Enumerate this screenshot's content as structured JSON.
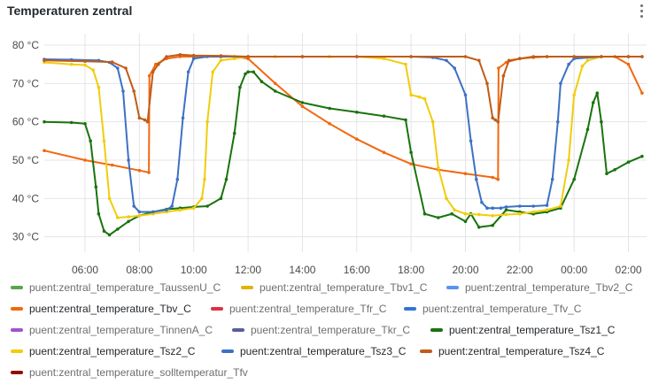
{
  "panel": {
    "title": "Temperaturen zentral",
    "menu_icon": "kebab-menu-icon"
  },
  "chart_data": {
    "type": "line",
    "title": "Temperaturen zentral",
    "xlabel": "",
    "ylabel": "",
    "x_unit": "hours (local time, day boundary after 23:59)",
    "xlim": [
      "04:30",
      "26:40"
    ],
    "ylim": [
      26,
      83
    ],
    "y_ticks": [
      30,
      40,
      50,
      60,
      70,
      80
    ],
    "y_tick_labels": [
      "30 °C",
      "40 °C",
      "50 °C",
      "60 °C",
      "70 °C",
      "80 °C"
    ],
    "x_ticks": [
      6,
      8,
      10,
      12,
      14,
      16,
      18,
      20,
      22,
      24,
      26
    ],
    "x_tick_labels": [
      "06:00",
      "08:00",
      "10:00",
      "12:00",
      "14:00",
      "16:00",
      "18:00",
      "20:00",
      "22:00",
      "00:00",
      "02:00"
    ],
    "grid": true,
    "legend_placement": "bottom",
    "series": [
      {
        "name": "puent:zentral_temperature_TaussenU_C",
        "color": "#56a64b",
        "active": false,
        "x": [],
        "y": []
      },
      {
        "name": "puent:zentral_temperature_Tbv1_C",
        "color": "#e0b400",
        "active": false,
        "x": [],
        "y": []
      },
      {
        "name": "puent:zentral_temperature_Tbv2_C",
        "color": "#5794f2",
        "active": false,
        "x": [],
        "y": []
      },
      {
        "name": "puent:zentral_temperature_Tbv_C",
        "color": "#f2680f",
        "active": true,
        "x": [
          4.5,
          6,
          7,
          8,
          8.35,
          8.37,
          8.6,
          9,
          9.5,
          10,
          11,
          11.5,
          12,
          13,
          14,
          15,
          16,
          17,
          18,
          19,
          20,
          21,
          21.2,
          21.22,
          21.5,
          22,
          22.5,
          23,
          24,
          25,
          25.5,
          26,
          26.5
        ],
        "y": [
          52.5,
          50,
          48.7,
          47.3,
          46.8,
          72,
          75,
          76.5,
          77,
          77,
          77,
          77,
          76.5,
          70,
          64,
          59.5,
          55.5,
          52,
          49,
          47.5,
          46.5,
          45.5,
          45,
          74,
          75.5,
          76.5,
          76.8,
          77,
          77,
          77,
          77,
          75,
          67.5
        ]
      },
      {
        "name": "puent:zentral_temperature_Tfr_C",
        "color": "#e02f44",
        "active": false,
        "x": [],
        "y": []
      },
      {
        "name": "puent:zentral_temperature_Tfv_C",
        "color": "#3274d9",
        "active": false,
        "x": [],
        "y": []
      },
      {
        "name": "puent:zentral_temperature_TinnenA_C",
        "color": "#a352cc",
        "active": false,
        "x": [],
        "y": []
      },
      {
        "name": "puent:zentral_temperature_Tkr_C",
        "color": "#5a5f9a",
        "active": false,
        "x": [],
        "y": []
      },
      {
        "name": "puent:zentral_temperature_Tsz1_C",
        "color": "#19730e",
        "active": true,
        "x": [
          4.5,
          5.5,
          6,
          6.2,
          6.4,
          6.5,
          6.7,
          6.9,
          7.2,
          7.6,
          8,
          8.5,
          9,
          9.5,
          10,
          10.5,
          11,
          11.2,
          11.5,
          11.7,
          11.9,
          12,
          12.2,
          12.5,
          13,
          14,
          15,
          16,
          17,
          17.8,
          18,
          18.5,
          19,
          19.5,
          20,
          20.2,
          20.5,
          21,
          21.5,
          22,
          22.5,
          23,
          23.5,
          24,
          24.5,
          24.7,
          24.85,
          25,
          25.2,
          25.5,
          26,
          26.5
        ],
        "y": [
          60,
          59.8,
          59.5,
          55,
          43,
          36,
          31.5,
          30.5,
          32,
          34,
          35.5,
          36.5,
          37.2,
          37.5,
          37.8,
          38,
          40,
          45,
          57,
          69,
          72.5,
          73,
          73,
          70.5,
          68,
          65,
          63.5,
          62.5,
          61.5,
          60.5,
          52,
          36,
          35,
          36,
          34,
          36,
          32.5,
          33,
          37,
          36.5,
          36,
          36.5,
          37.5,
          45,
          58,
          65,
          67.5,
          60,
          46.5,
          47.5,
          49.5,
          51
        ]
      },
      {
        "name": "puent:zentral_temperature_Tsz2_C",
        "color": "#f2cc0c",
        "active": true,
        "x": [
          4.5,
          5.5,
          6,
          6.3,
          6.5,
          6.7,
          6.9,
          7.2,
          7.6,
          8,
          8.5,
          9,
          9.5,
          10,
          10.3,
          10.4,
          10.5,
          10.7,
          11,
          11.5,
          12,
          13,
          14,
          15,
          16,
          17,
          17.8,
          18,
          18.3,
          18.5,
          18.8,
          19,
          19.3,
          19.6,
          20,
          20.5,
          21,
          21.5,
          22,
          22.5,
          23,
          23.5,
          23.8,
          24,
          24.3,
          24.5,
          25,
          26,
          26.5
        ],
        "y": [
          75.5,
          75,
          74.8,
          73.5,
          69,
          55,
          40,
          35,
          35.2,
          35.5,
          36,
          36.5,
          37,
          37.5,
          40,
          45,
          60,
          73,
          76,
          76.5,
          77,
          77,
          77,
          77,
          77,
          76.5,
          75,
          67,
          66.5,
          66,
          60,
          48,
          40,
          37,
          36,
          35.8,
          35.5,
          35.8,
          36,
          36.5,
          37,
          38,
          50,
          67,
          74.5,
          76,
          77,
          77,
          77
        ]
      },
      {
        "name": "puent:zentral_temperature_Tsz3_C",
        "color": "#3d71c4",
        "active": true,
        "x": [
          4.5,
          5.5,
          6.5,
          6.9,
          7.2,
          7.4,
          7.6,
          7.8,
          8,
          8.5,
          9,
          9.2,
          9.4,
          9.6,
          9.8,
          10,
          10.5,
          11,
          12,
          14,
          16,
          18,
          18.8,
          19.3,
          19.6,
          20,
          20.2,
          20.4,
          20.6,
          20.8,
          21,
          21.3,
          21.5,
          22,
          22.5,
          23,
          23.2,
          23.4,
          23.5,
          23.8,
          24,
          25,
          26,
          26.5
        ],
        "y": [
          76.3,
          76.2,
          76,
          75.5,
          74,
          68,
          50,
          38,
          36.5,
          36.5,
          37,
          38,
          45,
          61,
          73,
          76.5,
          77,
          77,
          77,
          77,
          77,
          77,
          76.8,
          76,
          74,
          67,
          55,
          45,
          39,
          37.5,
          37.5,
          37.5,
          37.8,
          38,
          38,
          38.2,
          45,
          60,
          70,
          75,
          76.5,
          77,
          77,
          77
        ]
      },
      {
        "name": "puent:zentral_temperature_Tsz4_C",
        "color": "#c15c17",
        "active": true,
        "x": [
          4.5,
          6,
          7,
          7.5,
          7.8,
          8,
          8.2,
          8.3,
          8.5,
          8.7,
          9,
          9.5,
          10,
          11,
          12,
          14,
          16,
          18,
          20,
          20.5,
          20.8,
          21,
          21.1,
          21.2,
          21.4,
          21.6,
          22,
          22.5,
          23,
          24,
          25,
          26,
          26.5
        ],
        "y": [
          76,
          75.8,
          75.6,
          74,
          68,
          61,
          60.5,
          60,
          73,
          75,
          77,
          77.5,
          77.3,
          77.2,
          77,
          77,
          77,
          77,
          77,
          76,
          70,
          61,
          60.5,
          60,
          72,
          76,
          76.5,
          77,
          77,
          77,
          77,
          77,
          77
        ]
      },
      {
        "name": "puent:zentral_temperature_solltemperatur_Tfv",
        "color": "#8f1000",
        "active": false,
        "x": [],
        "y": []
      }
    ]
  }
}
